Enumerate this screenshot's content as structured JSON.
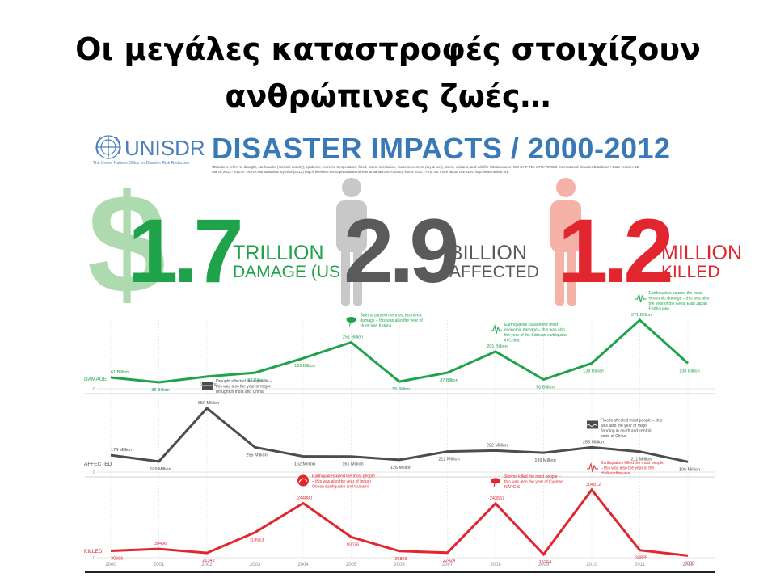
{
  "slide": {
    "title_line1": "Οι μεγάλες καταστροφές στοιχίζουν",
    "title_line2": "ανθρώπινες ζωές…"
  },
  "header": {
    "logo_text": "UNISDR",
    "logo_sub": "The United Nations Office for Disaster Risk Reduction",
    "title": "DISASTER IMPACTS / 2000-2012",
    "note": "*Disasters refers to drought, earthquake (seismic activity), epidemic, extreme temperature, flood, insect infestation, mass movement (dry & wet), storm, volcano, and wildfire / Data source: EM-DAT: The OFDA/CRED International Disaster Database / Data version: 12 March 2013 - v12.07 OCHA Humanitarian Symbol (2012) http://reliefweb.int/map/world/world-humanitarian-and-country-icons-2012 / Find out more about UNISDR: http://www.unisdr.org"
  },
  "stats": [
    {
      "value": "1.7",
      "unit1": "TRILLION",
      "unit2": "DAMAGE (USD)",
      "color": "#1fa34a",
      "icon": "dollar-icon"
    },
    {
      "value": "2.9",
      "unit1": "BILLION",
      "unit2": "AFFECTED",
      "color": "#5a5a5c",
      "icon": "person-icon"
    },
    {
      "value": "1.2",
      "unit1": "MILLION",
      "unit2": "KILLED",
      "color": "#e2262f",
      "icon": "person-icon"
    }
  ],
  "colors": {
    "damage": "#1fa34a",
    "affected": "#4d4d4f",
    "killed": "#e2262f"
  },
  "chart_data": {
    "type": "line",
    "x": [
      "2000",
      "2001",
      "2002",
      "2003",
      "2004",
      "2005",
      "2006",
      "2007",
      "2008",
      "2009",
      "2010",
      "2011",
      "2012"
    ],
    "series": [
      {
        "name": "DAMAGE",
        "values": [
          61,
          35,
          66,
          87,
          165,
          251,
          39,
          87,
          201,
          50,
          138,
          371,
          138
        ],
        "labels": [
          "61 Billion",
          "35 Billion",
          "66 Billion",
          "87 Billion",
          "165 Billion",
          "251 Billion",
          "39 Billion",
          "87 Billion",
          "201 Billion",
          "50 Billion",
          "138 Billion",
          "371 Billion",
          "138 Billion"
        ],
        "zero_label": "0",
        "annotations": [
          {
            "index": 5,
            "text": "Storms caused the most economic damage – this was also the year of Hurricane Katrina.",
            "icon": "storm-icon"
          },
          {
            "index": 8,
            "text": "Earthquakes caused the most economic damage – this was also the year of the Sichuan earthquake in China.",
            "icon": "earthquake-icon"
          },
          {
            "index": 11,
            "text": "Earthquakes caused the most economic damage – this was also the year of the Great East Japan Earthquake.",
            "icon": "earthquake-icon"
          }
        ]
      },
      {
        "name": "AFFECTED",
        "values": [
          174,
          109,
          659,
          255,
          162,
          161,
          126,
          212,
          222,
          199,
          255,
          211,
          106
        ],
        "labels": [
          "174 Million",
          "109 Million",
          "659 Million",
          "255 Million",
          "162 Million",
          "161 Million",
          "126 Million",
          "212 Million",
          "222 Million",
          "199 Million",
          "255 Million",
          "211 Million",
          "106 Million"
        ],
        "zero_label": "0",
        "annotations": [
          {
            "index": 2,
            "text": "Drought affected most people – this was also the year of major drought in India and China",
            "icon": "drought-icon"
          },
          {
            "index": 10,
            "text": "Floods affected most people – this was also the year of major flooding in south and central parts of China",
            "icon": "flood-icon"
          }
        ]
      },
      {
        "name": "KILLED",
        "values": [
          30666,
          39496,
          21342,
          113513,
          244880,
          93076,
          29893,
          22424,
          243567,
          15264,
          304812,
          33825,
          9330
        ],
        "labels": [
          "30666",
          "39496",
          "21342",
          "113513",
          "244880",
          "93076",
          "29893",
          "22424",
          "243567",
          "15264",
          "304812",
          "33825",
          "9330"
        ],
        "zero_label": "0",
        "annotations": [
          {
            "index": 4,
            "text": "Earthquakes killed the most people – this was also the year of Indian Ocean earthquake and tsunami",
            "icon": "tsunami-icon"
          },
          {
            "index": 8,
            "text": "Storms killed the most people – this was also the year of Cyclone NARGIS",
            "icon": "storm-icon"
          },
          {
            "index": 10,
            "text": "Earthquakes killed the most people – this was also the year of the Haiti earthquake.",
            "icon": "earthquake-icon"
          }
        ]
      }
    ]
  }
}
